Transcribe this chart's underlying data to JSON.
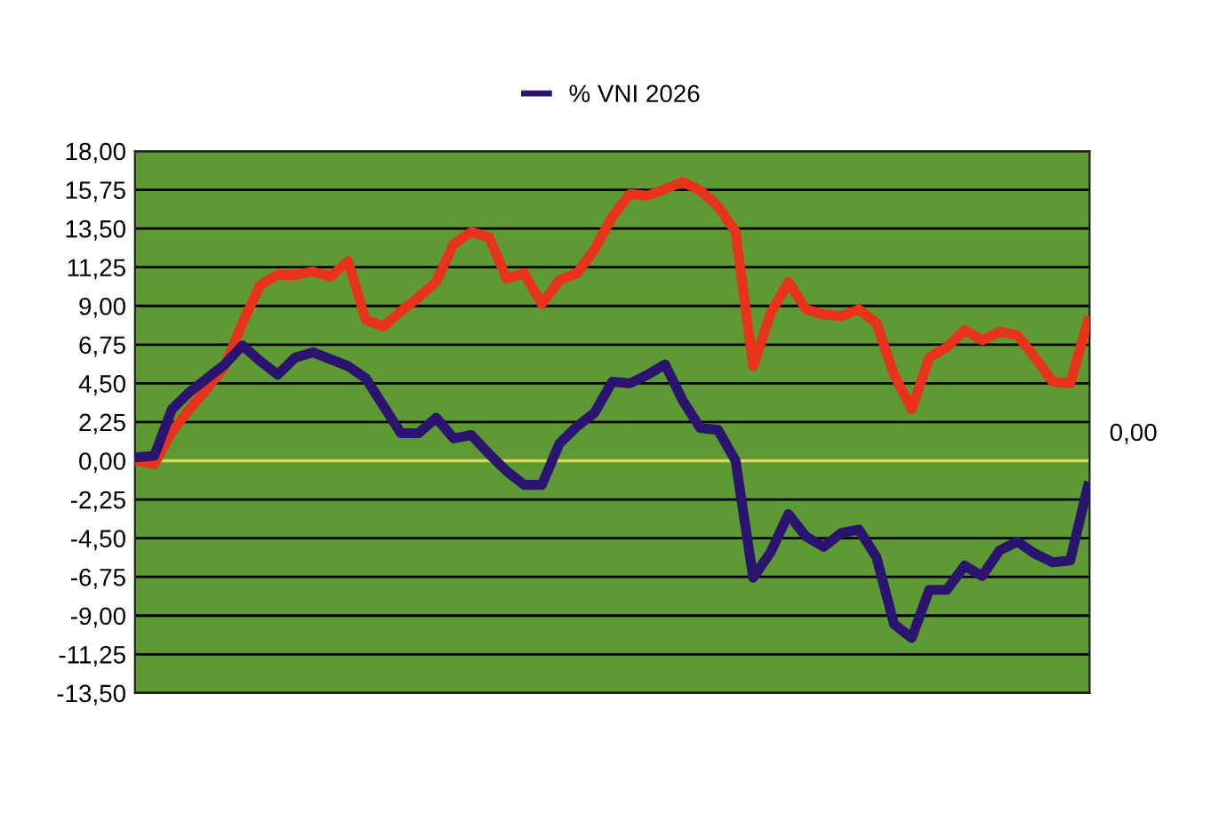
{
  "chart_data": {
    "type": "line",
    "categories": [
      null,
      null,
      null,
      null,
      null,
      null,
      null,
      null,
      null,
      null,
      null,
      null,
      null,
      null,
      null,
      null,
      null,
      null,
      null,
      null,
      null,
      null,
      null,
      null,
      null,
      null,
      null,
      null,
      null,
      null,
      null,
      null,
      null,
      null,
      null,
      null,
      null,
      null,
      null,
      null,
      null,
      null,
      null,
      null,
      null,
      null,
      null,
      null,
      null,
      null,
      null,
      null,
      null,
      null,
      null
    ],
    "series": [
      {
        "color": "#e8321a",
        "values": [
          0,
          -0.2,
          1.7,
          3.0,
          4.2,
          5.5,
          8.0,
          10.2,
          10.8,
          10.8,
          11.0,
          10.7,
          11.6,
          8.2,
          7.8,
          8.7,
          9.5,
          10.4,
          12.6,
          13.3,
          13.0,
          10.6,
          10.9,
          9.1,
          10.5,
          10.9,
          12.3,
          14.2,
          15.5,
          15.4,
          15.8,
          16.2,
          15.7,
          14.8,
          13.3,
          5.5,
          8.6,
          10.4,
          8.8,
          8.5,
          8.4,
          8.8,
          8.0,
          5.0,
          3.0,
          6.0,
          6.6,
          7.6,
          7.0,
          7.5,
          7.3,
          6.0,
          4.6,
          4.5,
          8.1
        ]
      },
      {
        "name": "% VNI 2026",
        "color": "#2a1470",
        "values": [
          0.2,
          0.3,
          3.0,
          4.0,
          4.8,
          5.6,
          6.7,
          5.8,
          5.0,
          6.0,
          6.3,
          5.9,
          5.5,
          4.8,
          3.2,
          1.6,
          1.6,
          2.5,
          1.3,
          1.5,
          0.4,
          -0.6,
          -1.4,
          -1.4,
          1.0,
          2.0,
          2.8,
          4.6,
          4.5,
          5.0,
          5.6,
          3.5,
          1.9,
          1.8,
          0.0,
          -6.8,
          -5.3,
          -3.1,
          -4.4,
          -5.0,
          -4.2,
          -4.0,
          -5.6,
          -9.5,
          -10.3,
          -7.5,
          -7.5,
          -6.1,
          -6.7,
          -5.2,
          -4.7,
          -5.4,
          -5.9,
          -5.8,
          -1.5
        ]
      }
    ],
    "ylim": [
      -13.5,
      18
    ],
    "yticks": [
      {
        "value": -13.5,
        "label": "-13,50"
      },
      {
        "value": -11.25,
        "label": "-11,25"
      },
      {
        "value": -9,
        "label": "-9,00"
      },
      {
        "value": -6.75,
        "label": "-6,75"
      },
      {
        "value": -4.5,
        "label": "-4,50"
      },
      {
        "value": -2.25,
        "label": "-2,25"
      },
      {
        "value": 0,
        "label": "0,00"
      },
      {
        "value": 2.25,
        "label": "2,25"
      },
      {
        "value": 4.5,
        "label": "4,50"
      },
      {
        "value": 6.75,
        "label": "6,75"
      },
      {
        "value": 9,
        "label": "9,00"
      },
      {
        "value": 11.25,
        "label": "11,25"
      },
      {
        "value": 13.5,
        "label": "13,50"
      },
      {
        "value": 15.75,
        "label": "15,75"
      },
      {
        "value": 18,
        "label": "18,00"
      }
    ],
    "ref_lines": [
      {
        "axis": "y",
        "value": 0,
        "label": "0,00",
        "color": "#e8d44a"
      }
    ],
    "grid": "y",
    "legend": "top",
    "tick_labels": "y",
    "line_style": "solid"
  }
}
